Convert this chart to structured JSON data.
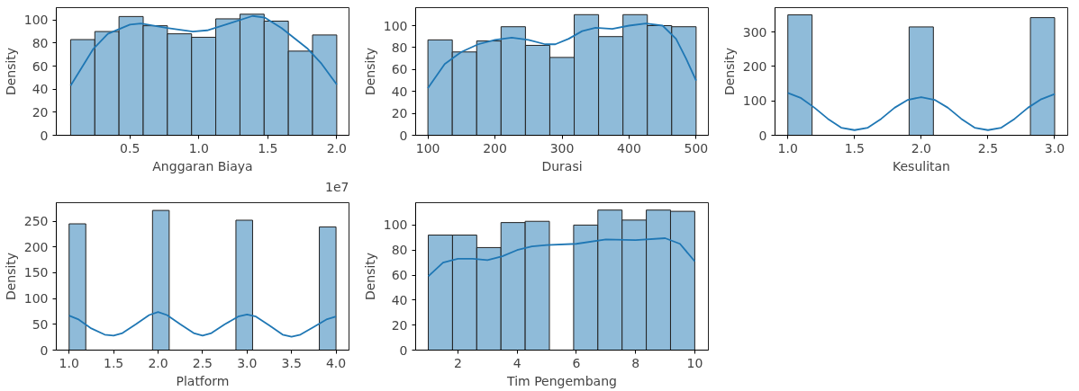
{
  "chart_data": [
    {
      "type": "histogram",
      "xlabel": "Anggaran Biaya",
      "ylabel": "Density",
      "annotations": [
        "1e7"
      ],
      "color": "#8fbbd9",
      "bins": [
        0.07,
        0.2455,
        0.4209,
        0.5964,
        0.7718,
        0.9473,
        1.1227,
        1.2982,
        1.4736,
        1.6491,
        1.8245,
        2.0
      ],
      "values": [
        83,
        90,
        103,
        95,
        88,
        85,
        101,
        105,
        99,
        73,
        87
      ],
      "series": [
        {
          "type": "line",
          "color": "#1f77b4",
          "x": [
            0.07,
            0.235,
            0.34,
            0.5,
            0.58,
            0.77,
            0.956,
            1.06,
            1.22,
            1.39,
            1.48,
            1.6,
            1.79,
            1.89,
            2.0
          ],
          "values": [
            43,
            75,
            88,
            96,
            97,
            93,
            90,
            91,
            97,
            103.5,
            102,
            93,
            75,
            62,
            44
          ]
        }
      ],
      "xlim": [
        -0.034,
        2.089
      ],
      "ylim": [
        0,
        110.7
      ],
      "xticks": [
        0.5,
        {
          "value": 1,
          "label": "1.0"
        },
        1.5,
        {
          "value": 2,
          "label": "2.0"
        }
      ],
      "yticks": [
        0,
        20,
        40,
        60,
        80,
        100
      ],
      "grid": false
    },
    {
      "type": "histogram",
      "xlabel": "Durasi",
      "ylabel": "Density",
      "color": "#8fbbd9",
      "bins": [
        100,
        136.36,
        172.73,
        209.09,
        245.45,
        281.82,
        318.18,
        354.55,
        390.91,
        427.27,
        463.64,
        500
      ],
      "values": [
        87,
        76,
        86,
        99,
        82,
        71,
        110,
        90,
        110,
        100,
        99
      ],
      "series": [
        {
          "type": "line",
          "color": "#1f77b4",
          "x": [
            100,
            125,
            150,
            175,
            200,
            225,
            250,
            275,
            290,
            310,
            330,
            350,
            375,
            400,
            425,
            450,
            470,
            485,
            500
          ],
          "values": [
            43,
            65,
            76,
            83,
            87,
            89,
            87,
            83,
            83,
            88,
            95,
            98,
            97,
            100,
            102,
            100,
            88,
            70,
            50
          ]
        }
      ],
      "xlim": [
        81.7,
        518.3
      ],
      "ylim": [
        0,
        116.4
      ],
      "xticks": [
        100,
        200,
        300,
        400,
        500
      ],
      "yticks": [
        0,
        20,
        40,
        60,
        80,
        100
      ],
      "grid": false
    },
    {
      "type": "histogram",
      "xlabel": "Kesulitan",
      "ylabel": "Density",
      "color": "#8fbbd9",
      "bins": [
        1.0,
        1.1818,
        1.3636,
        1.5455,
        1.7273,
        1.9091,
        2.0909,
        2.2727,
        2.4545,
        2.6364,
        2.8182,
        3.0
      ],
      "values": [
        350,
        0,
        0,
        0,
        0,
        315,
        0,
        0,
        0,
        0,
        342
      ],
      "series": [
        {
          "type": "line",
          "color": "#1f77b4",
          "x": [
            1.0,
            1.1,
            1.2,
            1.3,
            1.4,
            1.5,
            1.6,
            1.7,
            1.8,
            1.9,
            2.0,
            2.1,
            2.2,
            2.3,
            2.4,
            2.5,
            2.6,
            2.7,
            2.8,
            2.9,
            3.0
          ],
          "values": [
            123,
            108,
            80,
            48,
            22,
            15,
            22,
            48,
            80,
            103,
            111,
            103,
            80,
            48,
            22,
            15,
            22,
            48,
            80,
            105,
            120
          ]
        }
      ],
      "xlim": [
        0.904,
        3.098
      ],
      "ylim": [
        0,
        371
      ],
      "xticks": [
        {
          "value": 1,
          "label": "1.0"
        },
        1.5,
        {
          "value": 2,
          "label": "2.0"
        },
        2.5,
        {
          "value": 3,
          "label": "3.0"
        }
      ],
      "yticks": [
        0,
        100,
        200,
        300
      ],
      "grid": false
    },
    {
      "type": "histogram",
      "xlabel": "Platform",
      "ylabel": "Density",
      "color": "#8fbbd9",
      "bins": [
        1.0,
        1.1875,
        1.375,
        1.5625,
        1.75,
        1.9375,
        2.125,
        2.3125,
        2.5,
        2.6875,
        2.875,
        3.0625,
        3.25,
        3.4375,
        3.625,
        3.8125,
        4.0
      ],
      "values": [
        245,
        0,
        0,
        0,
        0,
        271,
        0,
        0,
        0,
        0,
        252,
        0,
        0,
        0,
        0,
        239
      ],
      "series": [
        {
          "type": "line",
          "color": "#1f77b4",
          "x": [
            1.0,
            1.1,
            1.25,
            1.4,
            1.5,
            1.6,
            1.75,
            1.9,
            2.0,
            2.1,
            2.25,
            2.4,
            2.5,
            2.6,
            2.75,
            2.9,
            3.0,
            3.1,
            3.25,
            3.4,
            3.5,
            3.6,
            3.75,
            3.9,
            4.0
          ],
          "values": [
            67,
            60,
            42,
            30,
            28,
            33,
            50,
            68,
            74,
            68,
            50,
            33,
            28,
            33,
            50,
            65,
            69,
            65,
            48,
            30,
            26,
            30,
            45,
            60,
            65
          ]
        }
      ],
      "xlim": [
        0.856,
        4.146
      ],
      "ylim": [
        0,
        286
      ],
      "xticks": [
        {
          "value": 1,
          "label": "1.0"
        },
        1.5,
        {
          "value": 2,
          "label": "2.0"
        },
        2.5,
        {
          "value": 3,
          "label": "3.0"
        },
        3.5,
        {
          "value": 4,
          "label": "4.0"
        }
      ],
      "yticks": [
        0,
        50,
        100,
        150,
        200,
        250
      ],
      "grid": false
    },
    {
      "type": "histogram",
      "xlabel": "Tim Pengembang",
      "ylabel": "Density",
      "color": "#8fbbd9",
      "bins": [
        1.0,
        1.8182,
        2.6364,
        3.4545,
        4.2727,
        5.0909,
        5.9091,
        6.7273,
        7.5455,
        8.3636,
        9.1818,
        10.0
      ],
      "values": [
        92,
        92,
        82,
        102,
        103,
        0,
        100,
        112,
        104,
        112,
        111
      ],
      "series": [
        {
          "type": "line",
          "color": "#1f77b4",
          "x": [
            1,
            1.5,
            2,
            2.5,
            3,
            3.5,
            4,
            4.5,
            5,
            6,
            7,
            8,
            9,
            9.5,
            10
          ],
          "values": [
            59,
            70,
            73,
            73,
            72,
            75,
            80,
            83,
            84,
            85,
            88.5,
            88,
            89.5,
            85,
            71
          ]
        }
      ],
      "xlim": [
        0.573,
        10.46
      ],
      "ylim": [
        0,
        117.9
      ],
      "xticks": [
        2,
        4,
        6,
        8,
        10
      ],
      "yticks": [
        0,
        20,
        40,
        60,
        80,
        100
      ],
      "grid": false
    }
  ]
}
